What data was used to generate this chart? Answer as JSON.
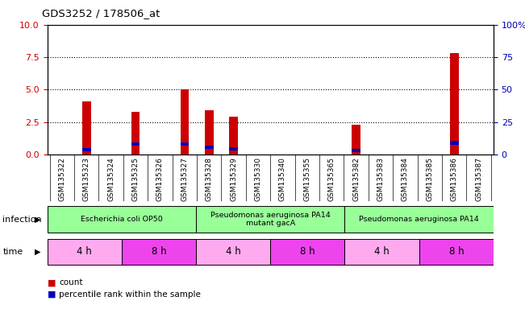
{
  "title": "GDS3252 / 178506_at",
  "samples": [
    "GSM135322",
    "GSM135323",
    "GSM135324",
    "GSM135325",
    "GSM135326",
    "GSM135327",
    "GSM135328",
    "GSM135329",
    "GSM135330",
    "GSM135340",
    "GSM135355",
    "GSM135365",
    "GSM135382",
    "GSM135383",
    "GSM135384",
    "GSM135385",
    "GSM135386",
    "GSM135387"
  ],
  "counts": [
    0,
    4.1,
    0,
    3.3,
    0,
    5.0,
    3.4,
    2.9,
    0,
    0,
    0,
    0,
    2.3,
    0,
    0,
    0,
    7.8,
    0
  ],
  "percentile_vals": [
    0,
    3.5,
    0,
    8.0,
    0,
    8.0,
    5.5,
    4.5,
    0,
    0,
    0,
    0,
    3.0,
    0,
    0,
    0,
    9.0,
    0
  ],
  "ylim_left": [
    0,
    10
  ],
  "ylim_right": [
    0,
    100
  ],
  "yticks_left": [
    0,
    2.5,
    5,
    7.5,
    10
  ],
  "yticks_right": [
    0,
    25,
    50,
    75,
    100
  ],
  "bar_color_red": "#cc0000",
  "bar_color_blue": "#0000bb",
  "infection_groups": [
    {
      "label": "Escherichia coli OP50",
      "start": 0,
      "end": 6,
      "color": "#99ff99"
    },
    {
      "label": "Pseudomonas aeruginosa PA14\nmutant gacA",
      "start": 6,
      "end": 12,
      "color": "#99ff99"
    },
    {
      "label": "Pseudomonas aeruginosa PA14",
      "start": 12,
      "end": 18,
      "color": "#99ff99"
    }
  ],
  "time_groups": [
    {
      "label": "4 h",
      "start": 0,
      "end": 3,
      "color": "#ffaaee"
    },
    {
      "label": "8 h",
      "start": 3,
      "end": 6,
      "color": "#ee44ee"
    },
    {
      "label": "4 h",
      "start": 6,
      "end": 9,
      "color": "#ffaaee"
    },
    {
      "label": "8 h",
      "start": 9,
      "end": 12,
      "color": "#ee44ee"
    },
    {
      "label": "4 h",
      "start": 12,
      "end": 15,
      "color": "#ffaaee"
    },
    {
      "label": "8 h",
      "start": 15,
      "end": 18,
      "color": "#ee44ee"
    }
  ],
  "infection_label": "infection",
  "time_label": "time",
  "legend_count": "count",
  "legend_percentile": "percentile rank within the sample",
  "bg_color": "#ffffff",
  "tick_label_color_left": "#cc0000",
  "tick_label_color_right": "#0000bb",
  "bar_width": 0.35,
  "xtick_bg": "#dddddd",
  "percentile_bar_height": 0.25
}
